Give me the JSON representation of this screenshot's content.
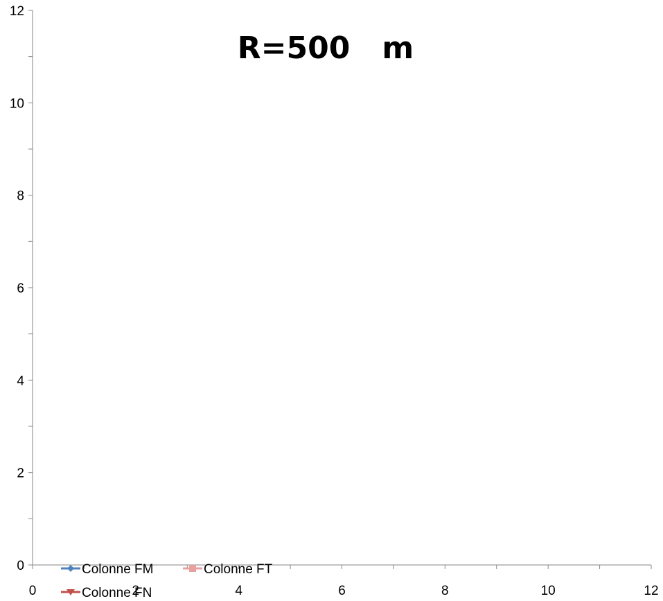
{
  "chart_data": {
    "type": "line",
    "title": "R=500   m",
    "xlabel": "",
    "ylabel": "",
    "xlim": [
      0,
      12
    ],
    "ylim": [
      0,
      12
    ],
    "x_ticks": [
      "0",
      "2",
      "4",
      "6",
      "8",
      "10",
      "12"
    ],
    "y_ticks": [
      "0",
      "2",
      "4",
      "6",
      "8",
      "10",
      "12"
    ],
    "grid": false,
    "legend_position": "bottom-left",
    "series": [
      {
        "name": "Colonne FM",
        "color": "#4f81bd",
        "marker": "diamond",
        "values": []
      },
      {
        "name": "Colonne FT",
        "color": "#e6a1a0",
        "marker": "square",
        "values": []
      },
      {
        "name": "Colonne FN",
        "color": "#c0504d",
        "marker": "triangle-down",
        "values": []
      }
    ]
  }
}
